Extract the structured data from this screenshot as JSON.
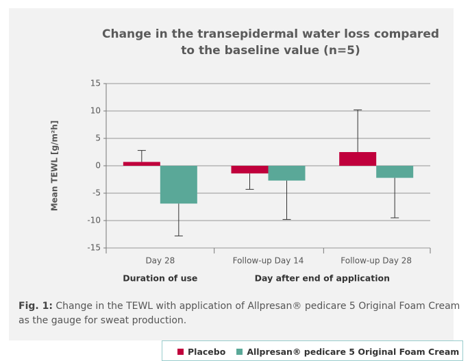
{
  "chart_data": {
    "type": "bar",
    "title_lines": [
      "Change in the transepidermal water loss compared",
      "to the baseline value (n=5)"
    ],
    "y_label": "Mean TEWL [g/m²h]",
    "categories": [
      "Day 28",
      "Follow-up Day 14",
      "Follow-up Day 28"
    ],
    "category_groups": [
      {
        "label": "Duration of use",
        "start": 0,
        "end": 0
      },
      {
        "label": "Day after end of application",
        "start": 1,
        "end": 2
      }
    ],
    "series": [
      {
        "name": "Placebo",
        "color": "#c0003c",
        "values": [
          0.7,
          -1.4,
          2.5
        ],
        "errors": [
          2.1,
          2.9,
          7.7
        ]
      },
      {
        "name": "Allpresan® pedicare 5 Original Foam Cream",
        "color": "#5aa898",
        "values": [
          -6.9,
          -2.7,
          -2.2
        ],
        "errors": [
          5.9,
          7.1,
          7.3
        ]
      }
    ],
    "ylim": [
      -15,
      15
    ],
    "yticks": [
      15,
      10,
      5,
      0,
      -5,
      -10,
      -15
    ],
    "grid": true
  },
  "caption": {
    "label": "Fig. 1:",
    "text": "Change in the TEWL with application of Allpresan® pedicare 5 Original Foam Cream as the gauge for sweat production."
  }
}
